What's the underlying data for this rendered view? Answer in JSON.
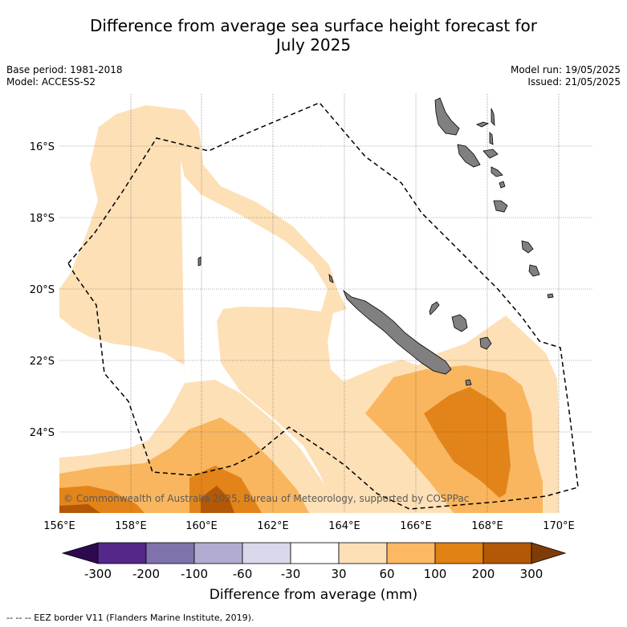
{
  "title": "Difference from average sea surface height forecast for July 2025",
  "title_line1": "Difference from average sea surface height forecast for",
  "title_line2": "July 2025",
  "meta_left": {
    "base_period": "Base period: 1981-2018",
    "model": "Model: ACCESS-S2"
  },
  "meta_right": {
    "model_run": "Model run: 19/05/2025",
    "issued": "Issued: 21/05/2025"
  },
  "map": {
    "lat_labels": [
      "16°S",
      "18°S",
      "20°S",
      "22°S",
      "24°S"
    ],
    "lon_labels": [
      "156°E",
      "158°E",
      "160°E",
      "162°E",
      "164°E",
      "166°E",
      "168°E",
      "170°E"
    ],
    "copyright": "© Commonwealth of Australia 2025, Bureau of Meteorology, supported by COSPPac",
    "colors": {
      "land": "#808080",
      "c30_60": "#fde0b6",
      "c60_100": "#f9b65e",
      "c100_200": "#e3841a",
      "c200_300": "#b35806"
    }
  },
  "colorbar": {
    "ticks": [
      "-300",
      "-200",
      "-100",
      "-60",
      "-30",
      "30",
      "60",
      "100",
      "200",
      "300"
    ],
    "colors": [
      "#2d0a4e",
      "#542788",
      "#8073ac",
      "#b2abd2",
      "#d8daeb",
      "#ffffff",
      "#fee0b6",
      "#fdb863",
      "#e08214",
      "#b35806",
      "#7f3b08"
    ],
    "label": "Difference from average (mm)"
  },
  "footnote": "--  --  -- EEZ border V11 (Flanders Marine Institute, 2019)."
}
